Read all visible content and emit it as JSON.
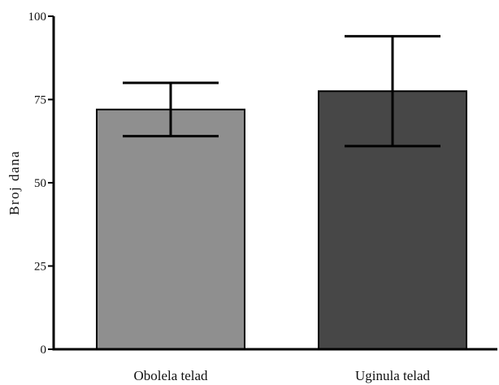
{
  "chart_data": {
    "type": "bar",
    "title": "",
    "xlabel": "",
    "ylabel": "Broj dana",
    "categories": [
      "Obolela telad",
      "Uginula telad"
    ],
    "values": [
      72,
      77.5
    ],
    "error_low": [
      64,
      61
    ],
    "error_high": [
      80,
      94
    ],
    "colors": [
      "#8f8f8f",
      "#474747"
    ],
    "ylim": [
      0,
      100
    ],
    "yticks": [
      0,
      25,
      50,
      75,
      100
    ],
    "ytick_labels": [
      "0",
      "25",
      "50",
      "75",
      "100"
    ],
    "grid": false,
    "legend": "none"
  }
}
